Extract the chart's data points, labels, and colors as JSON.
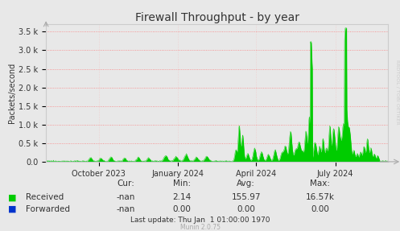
{
  "title": "Firewall Throughput - by year",
  "ylabel": "Packets/second",
  "bg_color": "#e8e8e8",
  "plot_bg_color": "#e8e8e8",
  "grid_color_major": "#ff9999",
  "grid_color_minor": "#ffcccc",
  "border_color": "#aaaaaa",
  "ytick_labels": [
    "0.0",
    "0.5 k",
    "1.0 k",
    "1.5 k",
    "2.0 k",
    "2.5 k",
    "3.0 k",
    "3.5 k"
  ],
  "ytick_values": [
    0,
    500,
    1000,
    1500,
    2000,
    2500,
    3000,
    3500
  ],
  "ylim": [
    0,
    3700
  ],
  "xtick_labels": [
    "October 2023",
    "January 2024",
    "April 2024",
    "July 2024"
  ],
  "xtick_positions": [
    0.154,
    0.385,
    0.615,
    0.846
  ],
  "legend_received_color": "#00cc00",
  "legend_forwarded_color": "#0033cc",
  "received_label": "Received",
  "forwarded_label": "Forwarded",
  "cur_label": "Cur:",
  "min_label": "Min:",
  "avg_label": "Avg:",
  "max_label": "Max:",
  "received_cur": "-nan",
  "received_min": "2.14",
  "received_avg": "155.97",
  "received_max": "16.57k",
  "forwarded_cur": "-nan",
  "forwarded_min": "0.00",
  "forwarded_avg": "0.00",
  "forwarded_max": "0.00",
  "last_update": "Last update: Thu Jan  1 01:00:00 1970",
  "munin_label": "Munin 2.0.75",
  "rrdtool_label": "RRDTOOL / TOBI OETIKER",
  "title_fontsize": 10,
  "axis_label_fontsize": 7,
  "tick_fontsize": 7,
  "legend_fontsize": 7.5,
  "footer_fontsize": 6.5,
  "rrdtool_fontsize": 4.5
}
